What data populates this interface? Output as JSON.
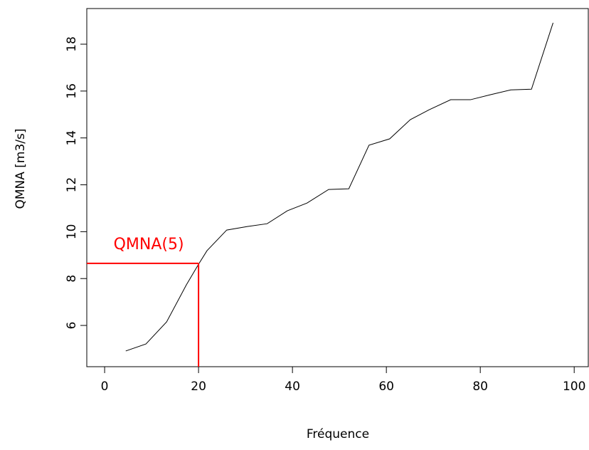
{
  "chart_data": {
    "type": "line",
    "xlabel": "Fréquence",
    "ylabel": "QMNA [m3/s]",
    "x": [
      4.5,
      8.8,
      13.2,
      17.4,
      20.0,
      21.8,
      26.0,
      30.4,
      34.6,
      38.9,
      43.1,
      47.7,
      52.0,
      56.3,
      60.7,
      65.1,
      69.1,
      73.7,
      77.9,
      82.1,
      86.5,
      90.9,
      95.5
    ],
    "values": [
      4.91,
      5.21,
      6.15,
      7.73,
      8.61,
      9.19,
      10.07,
      10.22,
      10.34,
      10.89,
      11.22,
      11.8,
      11.83,
      13.69,
      13.96,
      14.78,
      15.2,
      15.63,
      15.63,
      15.84,
      16.05,
      16.08,
      18.91
    ],
    "color": "#000000",
    "xlim": [
      -3.8,
      103
    ],
    "xticks": [
      0,
      20,
      40,
      60,
      80,
      100
    ],
    "ylim": [
      4.24,
      19.52
    ],
    "yticks": [
      6,
      8,
      10,
      12,
      14,
      16,
      18
    ],
    "reference": {
      "x": 20,
      "y": 8.65,
      "label": "QMNA(5)",
      "color": "#ff0000"
    }
  }
}
